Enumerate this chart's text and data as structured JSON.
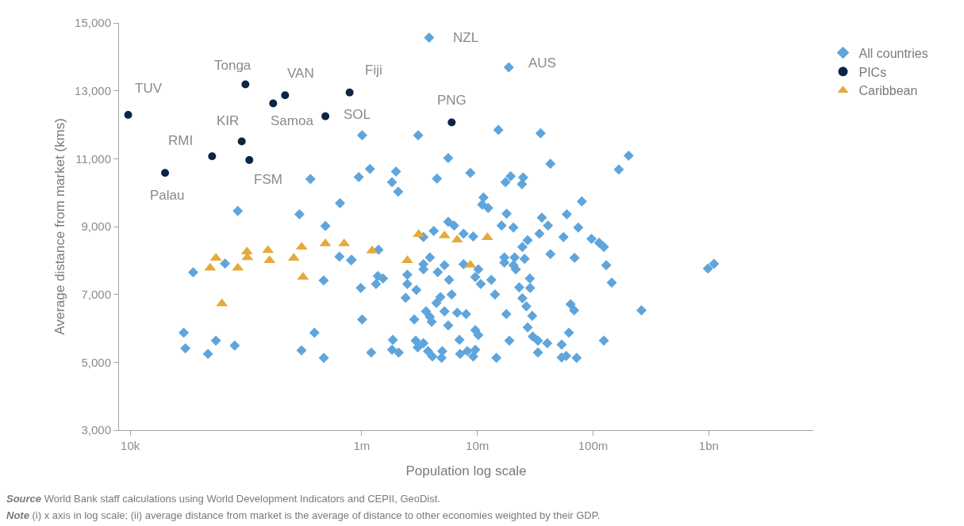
{
  "chart_data": {
    "type": "scatter",
    "xlabel": "Population log scale",
    "ylabel": "Average distance from market (kms)",
    "log": "x",
    "legend": "top right",
    "xlim": [
      8000,
      8000000000
    ],
    "xticks": [
      {
        "value": 10000,
        "label": "10k"
      },
      {
        "value": 1000000,
        "label": "1m"
      },
      {
        "value": 10000000,
        "label": "10m"
      },
      {
        "value": 100000000,
        "label": "100m"
      },
      {
        "value": 1000000000,
        "label": "1bn"
      }
    ],
    "ylim": [
      3000,
      15000
    ],
    "yticks": [
      {
        "value": 3000,
        "label": "3,000"
      },
      {
        "value": 5000,
        "label": "5,000"
      },
      {
        "value": 7000,
        "label": "7,000"
      },
      {
        "value": 9000,
        "label": "9,000"
      },
      {
        "value": 11000,
        "label": "11,000"
      },
      {
        "value": 13000,
        "label": "13,000"
      },
      {
        "value": 15000,
        "label": "15,000"
      }
    ],
    "series": [
      {
        "name": "All countries",
        "color": "#5fa5dc",
        "marker": "diamond",
        "x": [
          3830000,
          18700000,
          361000,
          85000,
          290000,
          650000,
          486000,
          66000,
          35000,
          643000,
          820000,
          469000,
          29000,
          30000,
          55000,
          47000,
          80000,
          391000,
          302000,
          471000,
          1010000,
          3080000,
          15200000,
          35200000,
          944000,
          1180000,
          1980000,
          1830000,
          2070000,
          4480000,
          5600000,
          8700000,
          17500000,
          19400000,
          24900000,
          24300000,
          11300000,
          11000000,
          12400000,
          17900000,
          16200000,
          20500000,
          36100000,
          34400000,
          5600000,
          6300000,
          4200000,
          3420000,
          7600000,
          9200000,
          27200000,
          24500000,
          809000,
          1400000,
          3890000,
          3420000,
          5200000,
          4550000,
          3420000,
          2480000,
          1380000,
          1530000,
          1330000,
          984000,
          2480000,
          2970000,
          2400000,
          5700000,
          6000000,
          4800000,
          4430000,
          7600000,
          10200000,
          9600000,
          10700000,
          13200000,
          14200000,
          17100000,
          21000000,
          25600000,
          20500000,
          21500000,
          17100000,
          28400000,
          23000000,
          28600000,
          24500000,
          26500000,
          27200000,
          29800000,
          33400000,
          17800000,
          18900000,
          33400000,
          30100000,
          1010000,
          1860000,
          2930000,
          1210000,
          1830000,
          2090000,
          2850000,
          3600000,
          3890000,
          4030000,
          5200000,
          6700000,
          8000000,
          5600000,
          9600000,
          10200000,
          7000000,
          3050000,
          3420000,
          3750000,
          4090000,
          4970000,
          4910000,
          7100000,
          8200000,
          9200000,
          9600000,
          14600000,
          42800000,
          203000000,
          167000000,
          80000000,
          59300000,
          40800000,
          74500000,
          55500000,
          97000000,
          113000000,
          124000000,
          42800000,
          69200000,
          130000000,
          145000000,
          984000000,
          1110000000,
          262000000,
          64000000,
          68600000,
          61800000,
          124000000,
          40200000,
          53500000,
          53500000,
          58600000,
          72100000
        ],
        "values": [
          14570,
          13690,
          10400,
          9460,
          9360,
          9690,
          9020,
          7910,
          7650,
          8110,
          8020,
          7410,
          5870,
          5410,
          5640,
          5250,
          5490,
          5870,
          5350,
          5130,
          11690,
          11690,
          11850,
          11750,
          10460,
          10700,
          10620,
          10310,
          10030,
          10410,
          11020,
          10580,
          10310,
          10480,
          10450,
          10250,
          9860,
          9650,
          9550,
          9380,
          9030,
          8970,
          9260,
          8790,
          9140,
          9030,
          8870,
          8690,
          8790,
          8710,
          8600,
          8400,
          8010,
          8320,
          8090,
          7890,
          7860,
          7660,
          7740,
          7580,
          7540,
          7470,
          7310,
          7190,
          7310,
          7130,
          6900,
          7430,
          7000,
          6920,
          6750,
          7890,
          7740,
          7510,
          7310,
          7430,
          7000,
          8090,
          8090,
          8050,
          7860,
          7740,
          7940,
          7470,
          7210,
          7190,
          6890,
          6650,
          6030,
          6370,
          5640,
          6420,
          5640,
          5290,
          5760,
          6260,
          5660,
          5640,
          5290,
          5370,
          5290,
          6260,
          6500,
          6340,
          6190,
          6500,
          6460,
          6420,
          6090,
          5950,
          5800,
          5660,
          5440,
          5560,
          5330,
          5170,
          5330,
          5130,
          5250,
          5330,
          5170,
          5370,
          5130,
          10850,
          11090,
          10680,
          9740,
          9360,
          9030,
          8970,
          8690,
          8640,
          8520,
          8400,
          8190,
          8080,
          7860,
          7350,
          7760,
          7900,
          6530,
          6710,
          6530,
          5870,
          5640,
          5560,
          5520,
          5140,
          5190,
          5130
        ]
      },
      {
        "name": "PICs",
        "color": "#0b2545",
        "marker": "circle",
        "x": [
          9600,
          99000,
          218000,
          172000,
          787000,
          486000,
          92000,
          51000,
          107000,
          20000,
          6000000
        ],
        "values": [
          12290,
          13190,
          12870,
          12630,
          12950,
          12250,
          11510,
          11070,
          10960,
          10580,
          12070
        ]
      },
      {
        "name": "Caribbean",
        "color": "#e6a93a",
        "marker": "triangle",
        "x": [
          55000,
          49000,
          102000,
          103000,
          85000,
          155000,
          160000,
          259000,
          303000,
          311000,
          486000,
          706000,
          62000,
          1230000,
          2480000,
          3110000,
          5200000,
          6700000,
          12200000,
          8700000
        ],
        "values": [
          8070,
          7780,
          8260,
          8090,
          7780,
          8300,
          8000,
          8070,
          8400,
          7510,
          8500,
          8500,
          6730,
          8290,
          8000,
          8770,
          8730,
          8610,
          8680,
          7870
        ]
      }
    ],
    "annotations": [
      {
        "text": "TUV",
        "x": 9600,
        "y": 12290
      },
      {
        "text": "Tonga",
        "x": 99000,
        "y": 13190
      },
      {
        "text": "VAN",
        "x": 218000,
        "y": 12870
      },
      {
        "text": "Samoa",
        "x": 172000,
        "y": 12630
      },
      {
        "text": "Fiji",
        "x": 787000,
        "y": 12950
      },
      {
        "text": "SOL",
        "x": 486000,
        "y": 12250
      },
      {
        "text": "KIR",
        "x": 92000,
        "y": 11510
      },
      {
        "text": "RMI",
        "x": 51000,
        "y": 11070
      },
      {
        "text": "FSM",
        "x": 107000,
        "y": 10960
      },
      {
        "text": "Palau",
        "x": 20000,
        "y": 10580
      },
      {
        "text": "PNG",
        "x": 6000000,
        "y": 12070
      },
      {
        "text": "NZL",
        "x": 3830000,
        "y": 14570
      },
      {
        "text": "AUS",
        "x": 18700000,
        "y": 13690
      },
      "Source World Bank staff calculations using World Development Indicators and CEPII, GeoDist.",
      "Note (i) x axis in log scale; (ii) average distance from market is the average of distance to other economies weighted by their GDP."
    ]
  }
}
